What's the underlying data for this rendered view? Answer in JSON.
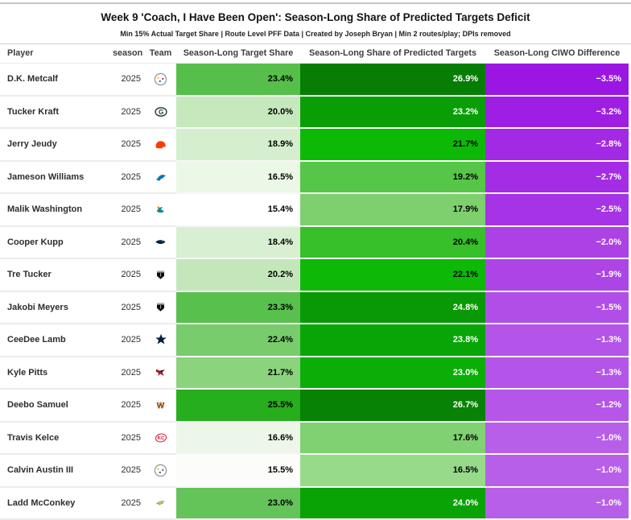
{
  "page": {
    "title": "Week 9 'Coach, I Have Been Open': Season-Long Share of Predicted Targets Deficit",
    "subtitle": "Min 15% Actual Target Share | Route Level PFF Data | Created by Joseph Bryan | Min 2 routes/play; DPIs removed"
  },
  "table": {
    "headers": {
      "player": "Player",
      "season": "season",
      "team": "Team",
      "target_share": "Season-Long Target Share",
      "predicted_share": "Season-Long Share of Predicted Targets",
      "ciwo_difference": "Season-Long CIWO Difference"
    },
    "rows": [
      {
        "player": "D.K. Metcalf",
        "season": "2025",
        "team": "Steelers",
        "team_key": "PIT",
        "target_share": "23.4%",
        "predicted_share": "26.9%",
        "ciwo_difference": "−3.5%",
        "colors": {
          "target_bg": "#56bf4b",
          "target_text": "#000000",
          "predicted_bg": "#067e04",
          "predicted_text": "#ffffff",
          "diff_bg": "#9b16e2",
          "diff_text": "#ffffff"
        }
      },
      {
        "player": "Tucker Kraft",
        "season": "2025",
        "team": "Packers",
        "team_key": "GB",
        "target_share": "20.0%",
        "predicted_share": "23.2%",
        "ciwo_difference": "−3.2%",
        "colors": {
          "target_bg": "#c6e8bd",
          "target_text": "#000000",
          "predicted_bg": "#0a9e06",
          "predicted_text": "#ffffff",
          "diff_bg": "#9e1ee3",
          "diff_text": "#ffffff"
        }
      },
      {
        "player": "Jerry Jeudy",
        "season": "2025",
        "team": "Browns",
        "team_key": "CLE",
        "target_share": "18.9%",
        "predicted_share": "21.7%",
        "ciwo_difference": "−2.8%",
        "colors": {
          "target_bg": "#d5eecd",
          "target_text": "#000000",
          "predicted_bg": "#0cb907",
          "predicted_text": "#000000",
          "diff_bg": "#a32ae4",
          "diff_text": "#ffffff"
        }
      },
      {
        "player": "Jameson Williams",
        "season": "2025",
        "team": "Lions",
        "team_key": "DET",
        "target_share": "16.5%",
        "predicted_share": "19.2%",
        "ciwo_difference": "−2.7%",
        "colors": {
          "target_bg": "#ebf7e7",
          "target_text": "#000000",
          "predicted_bg": "#55c647",
          "predicted_text": "#000000",
          "diff_bg": "#a42ce4",
          "diff_text": "#ffffff"
        }
      },
      {
        "player": "Malik Washington",
        "season": "2025",
        "team": "Dolphins",
        "team_key": "MIA",
        "target_share": "15.4%",
        "predicted_share": "17.9%",
        "ciwo_difference": "−2.5%",
        "colors": {
          "target_bg": "#ffffff",
          "target_text": "#000000",
          "predicted_bg": "#7ed06f",
          "predicted_text": "#000000",
          "diff_bg": "#a633e5",
          "diff_text": "#ffffff"
        }
      },
      {
        "player": "Cooper Kupp",
        "season": "2025",
        "team": "Seahawks",
        "team_key": "SEA",
        "target_share": "18.4%",
        "predicted_share": "20.4%",
        "ciwo_difference": "−2.0%",
        "colors": {
          "target_bg": "#d8efd1",
          "target_text": "#000000",
          "predicted_bg": "#37c029",
          "predicted_text": "#000000",
          "diff_bg": "#ac42e6",
          "diff_text": "#ffffff"
        }
      },
      {
        "player": "Tre Tucker",
        "season": "2025",
        "team": "Raiders",
        "team_key": "LV",
        "target_share": "20.2%",
        "predicted_share": "22.1%",
        "ciwo_difference": "−1.9%",
        "colors": {
          "target_bg": "#c3e7ba",
          "target_text": "#000000",
          "predicted_bg": "#0db807",
          "predicted_text": "#000000",
          "diff_bg": "#ad45e6",
          "diff_text": "#ffffff"
        }
      },
      {
        "player": "Jakobi Meyers",
        "season": "2025",
        "team": "Raiders",
        "team_key": "LV",
        "target_share": "23.3%",
        "predicted_share": "24.8%",
        "ciwo_difference": "−1.5%",
        "colors": {
          "target_bg": "#58c04d",
          "target_text": "#000000",
          "predicted_bg": "#089905",
          "predicted_text": "#ffffff",
          "diff_bg": "#b14ee8",
          "diff_text": "#ffffff"
        }
      },
      {
        "player": "CeeDee Lamb",
        "season": "2025",
        "team": "Cowboys",
        "team_key": "DAL",
        "target_share": "22.4%",
        "predicted_share": "23.8%",
        "ciwo_difference": "−1.3%",
        "colors": {
          "target_bg": "#79cc6b",
          "target_text": "#000000",
          "predicted_bg": "#09a506",
          "predicted_text": "#ffffff",
          "diff_bg": "#b454e8",
          "diff_text": "#ffffff"
        }
      },
      {
        "player": "Kyle Pitts",
        "season": "2025",
        "team": "Falcons",
        "team_key": "ATL",
        "target_share": "21.7%",
        "predicted_share": "23.0%",
        "ciwo_difference": "−1.3%",
        "colors": {
          "target_bg": "#8bd37d",
          "target_text": "#000000",
          "predicted_bg": "#0aae06",
          "predicted_text": "#ffffff",
          "diff_bg": "#b454e8",
          "diff_text": "#ffffff"
        }
      },
      {
        "player": "Deebo Samuel",
        "season": "2025",
        "team": "Commanders",
        "team_key": "WAS",
        "target_share": "25.5%",
        "predicted_share": "26.7%",
        "ciwo_difference": "−1.2%",
        "colors": {
          "target_bg": "#27ae1d",
          "target_text": "#000000",
          "predicted_bg": "#088204",
          "predicted_text": "#ffffff",
          "diff_bg": "#b556e9",
          "diff_text": "#ffffff"
        }
      },
      {
        "player": "Travis Kelce",
        "season": "2025",
        "team": "Chiefs",
        "team_key": "KC",
        "target_share": "16.6%",
        "predicted_share": "17.6%",
        "ciwo_difference": "−1.0%",
        "colors": {
          "target_bg": "#edf7e9",
          "target_text": "#000000",
          "predicted_bg": "#80d171",
          "predicted_text": "#000000",
          "diff_bg": "#b75fe9",
          "diff_text": "#ffffff"
        }
      },
      {
        "player": "Calvin Austin III",
        "season": "2025",
        "team": "Steelers",
        "team_key": "PIT",
        "target_share": "15.5%",
        "predicted_share": "16.5%",
        "ciwo_difference": "−1.0%",
        "colors": {
          "target_bg": "#fcfdfb",
          "target_text": "#000000",
          "predicted_bg": "#97da8a",
          "predicted_text": "#000000",
          "diff_bg": "#b75fe9",
          "diff_text": "#ffffff"
        }
      },
      {
        "player": "Ladd McConkey",
        "season": "2025",
        "team": "Chargers",
        "team_key": "LAC",
        "target_share": "23.0%",
        "predicted_share": "24.0%",
        "ciwo_difference": "−1.0%",
        "colors": {
          "target_bg": "#65c459",
          "target_text": "#000000",
          "predicted_bg": "#09a305",
          "predicted_text": "#ffffff",
          "diff_bg": "#b75fe9",
          "diff_text": "#ffffff"
        }
      }
    ]
  },
  "chart_data": {
    "type": "table",
    "title": "Week 9 'Coach, I Have Been Open': Season-Long Share of Predicted Targets Deficit",
    "subtitle": "Min 15% Actual Target Share | Route Level PFF Data | Created by Joseph Bryan | Min 2 routes/play; DPIs removed",
    "columns": [
      "Player",
      "season",
      "Team",
      "Season-Long Target Share",
      "Season-Long Share of Predicted Targets",
      "Season-Long CIWO Difference"
    ],
    "rows": [
      [
        "D.K. Metcalf",
        2025,
        "Steelers",
        23.4,
        26.9,
        -3.5
      ],
      [
        "Tucker Kraft",
        2025,
        "Packers",
        20.0,
        23.2,
        -3.2
      ],
      [
        "Jerry Jeudy",
        2025,
        "Browns",
        18.9,
        21.7,
        -2.8
      ],
      [
        "Jameson Williams",
        2025,
        "Lions",
        16.5,
        19.2,
        -2.7
      ],
      [
        "Malik Washington",
        2025,
        "Dolphins",
        15.4,
        17.9,
        -2.5
      ],
      [
        "Cooper Kupp",
        2025,
        "Seahawks",
        18.4,
        20.4,
        -2.0
      ],
      [
        "Tre Tucker",
        2025,
        "Raiders",
        20.2,
        22.1,
        -1.9
      ],
      [
        "Jakobi Meyers",
        2025,
        "Raiders",
        23.3,
        24.8,
        -1.5
      ],
      [
        "CeeDee Lamb",
        2025,
        "Cowboys",
        22.4,
        23.8,
        -1.3
      ],
      [
        "Kyle Pitts",
        2025,
        "Falcons",
        21.7,
        23.0,
        -1.3
      ],
      [
        "Deebo Samuel",
        2025,
        "Commanders",
        25.5,
        26.7,
        -1.2
      ],
      [
        "Travis Kelce",
        2025,
        "Chiefs",
        16.6,
        17.6,
        -1.0
      ],
      [
        "Calvin Austin III",
        2025,
        "Steelers",
        15.5,
        16.5,
        -1.0
      ],
      [
        "Ladd McConkey",
        2025,
        "Chargers",
        23.0,
        24.0,
        -1.0
      ]
    ],
    "color_encoding": {
      "share_columns_scale": {
        "min_value": 15.4,
        "max_value": 26.9,
        "min_color": "#ffffff",
        "max_color": "#067e04"
      },
      "difference_column_scale": {
        "min_value": -3.5,
        "max_value": -1.0,
        "min_color": "#9b16e2",
        "max_color": "#b75fe9"
      }
    },
    "sorted_by": "Season-Long CIWO Difference ascending"
  }
}
